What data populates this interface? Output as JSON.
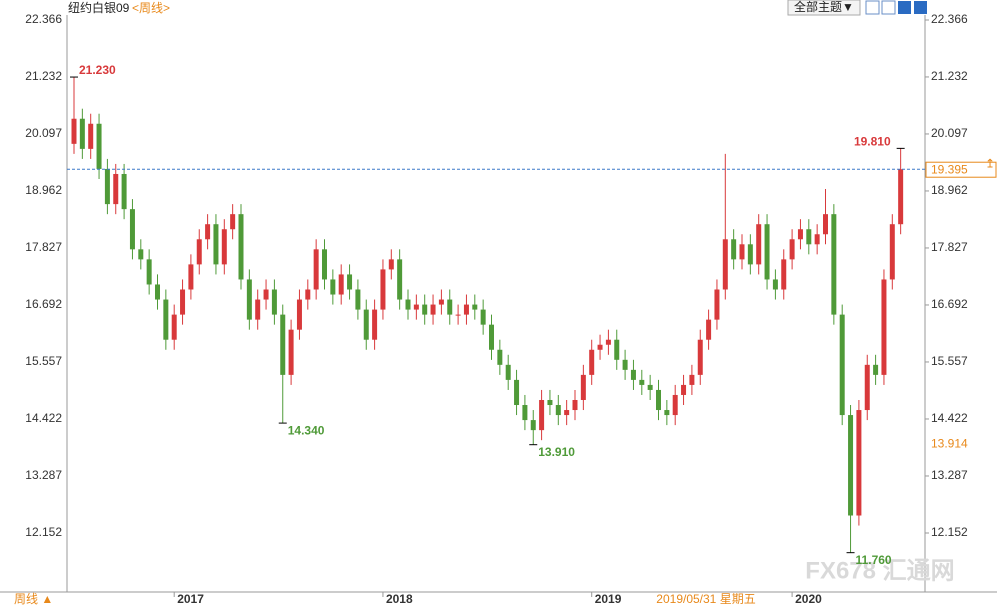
{
  "header": {
    "symbol": "纽约白银09",
    "period": "<周线>",
    "theme_button": "全部主题▼"
  },
  "footer": {
    "period_button": "周线 ▲",
    "crosshair_date": "2019/05/31 星期五",
    "watermark": "FX678 汇通网"
  },
  "chart_data": {
    "type": "candlestick",
    "open": [
      19.9,
      20.4,
      19.8,
      20.3,
      19.4,
      18.7,
      19.3,
      18.6,
      17.8,
      17.6,
      17.1,
      16.8,
      16.0,
      16.5,
      17.0,
      17.5,
      18.0,
      18.3,
      17.5,
      18.2,
      18.5,
      17.2,
      16.4,
      16.8,
      17.0,
      16.5,
      15.3,
      16.2,
      16.8,
      17.0,
      17.8,
      17.2,
      16.9,
      17.3,
      17.0,
      16.6,
      16.0,
      16.6,
      17.4,
      17.6,
      16.8,
      16.6,
      16.7,
      16.5,
      16.7,
      16.8,
      16.5,
      16.5,
      16.7,
      16.6,
      16.3,
      15.8,
      15.5,
      15.2,
      14.7,
      14.4,
      14.2,
      14.8,
      14.7,
      14.5,
      14.6,
      14.8,
      15.3,
      15.8,
      15.9,
      16.0,
      15.6,
      15.4,
      15.2,
      15.1,
      15.0,
      14.6,
      14.5,
      14.9,
      15.1,
      15.3,
      16.0,
      16.4,
      17.0,
      18.0,
      17.6,
      17.9,
      17.5,
      18.3,
      17.2,
      17.0,
      17.6,
      18.0,
      18.2,
      17.9,
      18.1,
      18.5,
      16.5,
      14.5,
      12.5,
      14.6,
      15.5,
      15.3,
      17.2,
      18.3
    ],
    "high": [
      21.23,
      20.6,
      20.5,
      20.5,
      19.6,
      19.5,
      19.5,
      18.8,
      18.0,
      17.8,
      17.3,
      17.0,
      16.7,
      17.2,
      17.7,
      18.2,
      18.5,
      18.5,
      18.4,
      18.7,
      18.7,
      17.4,
      17.0,
      17.2,
      17.2,
      16.7,
      16.4,
      17.0,
      17.2,
      18.0,
      18.0,
      17.4,
      17.5,
      17.5,
      17.2,
      16.8,
      16.8,
      17.6,
      17.8,
      17.8,
      17.0,
      16.9,
      16.9,
      16.9,
      17.0,
      17.0,
      16.7,
      16.9,
      16.9,
      16.8,
      16.5,
      16.0,
      15.7,
      15.4,
      14.9,
      14.6,
      15.0,
      15.0,
      14.9,
      14.8,
      15.0,
      15.5,
      16.0,
      16.1,
      16.2,
      16.2,
      15.8,
      15.6,
      15.4,
      15.3,
      15.2,
      14.8,
      15.1,
      15.3,
      15.5,
      16.2,
      16.6,
      17.2,
      19.7,
      18.2,
      18.1,
      18.1,
      18.5,
      18.5,
      17.4,
      17.8,
      18.2,
      18.4,
      18.4,
      18.3,
      19.0,
      18.7,
      16.7,
      14.7,
      14.8,
      15.7,
      15.7,
      17.4,
      18.5,
      19.81
    ],
    "low": [
      19.7,
      19.6,
      19.6,
      19.2,
      18.5,
      18.5,
      18.4,
      17.6,
      17.4,
      16.9,
      16.6,
      15.8,
      15.8,
      16.3,
      16.8,
      17.3,
      17.8,
      17.3,
      17.3,
      18.0,
      17.0,
      16.2,
      16.2,
      16.6,
      16.3,
      14.34,
      15.1,
      16.0,
      16.6,
      16.8,
      17.0,
      16.7,
      16.7,
      16.8,
      16.4,
      15.8,
      15.8,
      16.4,
      17.2,
      16.6,
      16.4,
      16.4,
      16.3,
      16.3,
      16.5,
      16.3,
      16.3,
      16.3,
      16.4,
      16.1,
      15.6,
      15.3,
      15.0,
      14.5,
      14.2,
      13.91,
      14.0,
      14.5,
      14.3,
      14.3,
      14.4,
      14.6,
      15.1,
      15.6,
      15.7,
      15.4,
      15.2,
      15.0,
      14.9,
      14.8,
      14.4,
      14.3,
      14.3,
      14.7,
      14.9,
      15.1,
      15.8,
      16.2,
      16.8,
      17.4,
      17.4,
      17.3,
      17.3,
      17.0,
      16.8,
      16.8,
      17.4,
      17.8,
      17.7,
      17.7,
      17.9,
      16.3,
      14.3,
      11.76,
      12.3,
      14.4,
      15.1,
      15.1,
      17.0,
      18.1
    ],
    "close": [
      20.4,
      19.8,
      20.3,
      19.4,
      18.7,
      19.3,
      18.6,
      17.8,
      17.6,
      17.1,
      16.8,
      16.0,
      16.5,
      17.0,
      17.5,
      18.0,
      18.3,
      17.5,
      18.2,
      18.5,
      17.2,
      16.4,
      16.8,
      17.0,
      16.5,
      15.3,
      16.2,
      16.8,
      17.0,
      17.8,
      17.2,
      16.9,
      17.3,
      17.0,
      16.6,
      16.0,
      16.6,
      17.4,
      17.6,
      16.8,
      16.6,
      16.7,
      16.5,
      16.7,
      16.8,
      16.5,
      16.5,
      16.7,
      16.6,
      16.3,
      15.8,
      15.5,
      15.2,
      14.7,
      14.4,
      14.2,
      14.8,
      14.7,
      14.5,
      14.6,
      14.8,
      15.3,
      15.8,
      15.9,
      16.0,
      15.6,
      15.4,
      15.2,
      15.1,
      15.0,
      14.6,
      14.5,
      14.9,
      15.1,
      15.3,
      16.0,
      16.4,
      17.0,
      18.0,
      17.6,
      17.9,
      17.5,
      18.3,
      17.2,
      17.0,
      17.6,
      18.0,
      18.2,
      17.9,
      18.1,
      18.5,
      16.5,
      14.5,
      12.5,
      14.6,
      15.5,
      15.3,
      17.2,
      18.3,
      19.395
    ],
    "up_color": "#d8393b",
    "down_color": "#4f9a38",
    "ylim": [
      10.977,
      22.565
    ],
    "yticks": [
      {
        "value": 22.366,
        "label": "22.366"
      },
      {
        "value": 21.232,
        "label": "21.232"
      },
      {
        "value": 20.097,
        "label": "20.097"
      },
      {
        "value": 18.962,
        "label": "18.962"
      },
      {
        "value": 17.827,
        "label": "17.827"
      },
      {
        "value": 16.692,
        "label": "16.692"
      },
      {
        "value": 15.557,
        "label": "15.557"
      },
      {
        "value": 14.422,
        "label": "14.422"
      },
      {
        "value": 13.287,
        "label": "13.287"
      },
      {
        "value": 12.152,
        "label": "12.152"
      }
    ],
    "xticks": [
      {
        "value": 12,
        "label": "2017"
      },
      {
        "value": 37,
        "label": "2018"
      },
      {
        "value": 62,
        "label": "2019"
      },
      {
        "value": 86,
        "label": "2020"
      }
    ],
    "extreme_labels": [
      {
        "value": 21.23,
        "label": "21.230",
        "color": "#d8393b"
      },
      {
        "value": 14.34,
        "label": "14.340",
        "color": "#4f9a38"
      },
      {
        "value": 13.91,
        "label": "13.910",
        "color": "#4f9a38"
      },
      {
        "value": 11.76,
        "label": "11.760",
        "color": "#4f9a38"
      },
      {
        "value": 19.81,
        "label": "19.810",
        "color": "#d8393b"
      }
    ],
    "price_line": {
      "value": 19.395,
      "label": "19.395"
    },
    "marker": {
      "value": 13.914,
      "label": "13.914"
    }
  }
}
